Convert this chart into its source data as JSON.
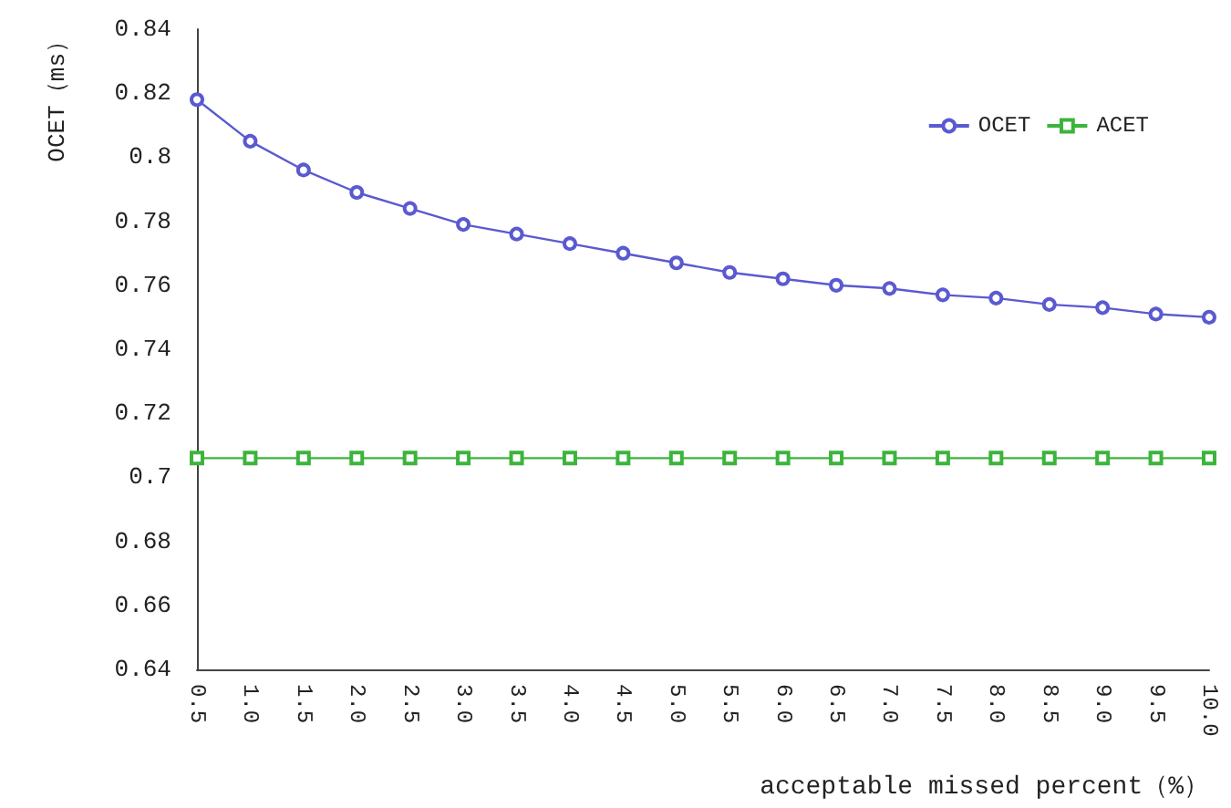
{
  "chart_data": {
    "type": "line",
    "xlabel": "acceptable missed percent（%）",
    "ylabel": "OCET（ms）",
    "categories": [
      "0.5",
      "1.0",
      "1.5",
      "2.0",
      "2.5",
      "3.0",
      "3.5",
      "4.0",
      "4.5",
      "5.0",
      "5.5",
      "6.0",
      "6.5",
      "7.0",
      "7.5",
      "8.0",
      "8.5",
      "9.0",
      "9.5",
      "10.0"
    ],
    "series": [
      {
        "name": "OCET",
        "color": "#5a5ad0",
        "marker": "circle",
        "values": [
          0.818,
          0.805,
          0.796,
          0.789,
          0.784,
          0.779,
          0.776,
          0.773,
          0.77,
          0.767,
          0.764,
          0.762,
          0.76,
          0.759,
          0.757,
          0.756,
          0.754,
          0.753,
          0.751,
          0.75
        ]
      },
      {
        "name": "ACET",
        "color": "#3cb43c",
        "marker": "square",
        "values": [
          0.706,
          0.706,
          0.706,
          0.706,
          0.706,
          0.706,
          0.706,
          0.706,
          0.706,
          0.706,
          0.706,
          0.706,
          0.706,
          0.706,
          0.706,
          0.706,
          0.706,
          0.706,
          0.706,
          0.706
        ]
      }
    ],
    "ylim": [
      0.64,
      0.84
    ],
    "yticks": [
      0.64,
      0.66,
      0.68,
      0.7,
      0.72,
      0.74,
      0.76,
      0.78,
      0.8,
      0.82,
      0.84
    ],
    "grid": false,
    "legend": "top right",
    "line_style": "solid"
  }
}
